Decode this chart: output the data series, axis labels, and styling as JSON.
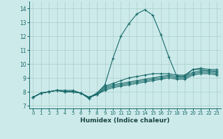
{
  "title": "",
  "xlabel": "Humidex (Indice chaleur)",
  "xlim": [
    -0.5,
    23.5
  ],
  "ylim": [
    6.8,
    14.5
  ],
  "yticks": [
    7,
    8,
    9,
    10,
    11,
    12,
    13,
    14
  ],
  "xticks": [
    0,
    1,
    2,
    3,
    4,
    5,
    6,
    7,
    8,
    9,
    10,
    11,
    12,
    13,
    14,
    15,
    16,
    17,
    18,
    19,
    20,
    21,
    22,
    23
  ],
  "background_color": "#cdeaea",
  "grid_color": "#aacccc",
  "line_color": "#1a6b6b",
  "lines": [
    [
      7.6,
      7.9,
      8.0,
      8.1,
      8.1,
      8.1,
      7.9,
      7.5,
      7.9,
      8.5,
      10.4,
      12.0,
      12.9,
      13.6,
      13.9,
      13.5,
      12.1,
      10.5,
      9.1,
      9.1,
      9.6,
      9.6,
      9.5,
      9.5
    ],
    [
      7.6,
      7.9,
      8.0,
      8.1,
      8.0,
      8.0,
      7.9,
      7.6,
      7.9,
      8.4,
      8.6,
      8.8,
      9.0,
      9.1,
      9.2,
      9.3,
      9.3,
      9.3,
      9.2,
      9.2,
      9.6,
      9.7,
      9.6,
      9.6
    ],
    [
      7.6,
      7.9,
      8.0,
      8.1,
      8.0,
      8.0,
      7.9,
      7.6,
      7.8,
      8.3,
      8.5,
      8.6,
      8.7,
      8.8,
      8.9,
      9.0,
      9.1,
      9.2,
      9.1,
      9.1,
      9.4,
      9.5,
      9.5,
      9.4
    ],
    [
      7.6,
      7.9,
      8.0,
      8.1,
      8.0,
      8.0,
      7.9,
      7.6,
      7.8,
      8.2,
      8.4,
      8.5,
      8.6,
      8.7,
      8.8,
      8.9,
      9.0,
      9.1,
      9.0,
      9.0,
      9.3,
      9.4,
      9.4,
      9.3
    ],
    [
      7.6,
      7.9,
      8.0,
      8.1,
      8.0,
      8.0,
      7.9,
      7.6,
      7.8,
      8.1,
      8.3,
      8.4,
      8.5,
      8.6,
      8.7,
      8.8,
      8.9,
      9.0,
      8.9,
      8.9,
      9.2,
      9.3,
      9.3,
      9.2
    ]
  ]
}
